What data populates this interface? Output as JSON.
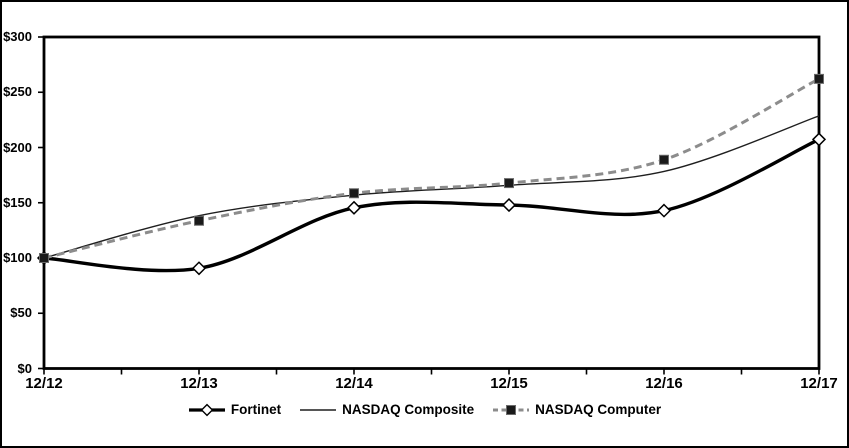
{
  "figure": {
    "background": "#ffffff",
    "outer_border_color": "#000000"
  },
  "chart_data": {
    "type": "line",
    "title": "",
    "xlabel": "",
    "ylabel": "",
    "categories": [
      "12/12",
      "12/13",
      "12/14",
      "12/15",
      "12/16",
      "12/17"
    ],
    "series": [
      {
        "name": "Fortinet",
        "values": [
          100,
          90.7,
          145.4,
          147.9,
          142.9,
          207.3
        ],
        "color": "#000000",
        "line_width": 3.4,
        "dash": "solid",
        "marker": "open-diamond",
        "marker_fill": "#ffffff",
        "marker_stroke": "#000000"
      },
      {
        "name": "NASDAQ Composite",
        "values": [
          100,
          138.3,
          156.9,
          165.8,
          178.3,
          228.6
        ],
        "color": "#1f1f1f",
        "line_width": 1.4,
        "dash": "solid",
        "marker": "none"
      },
      {
        "name": "NASDAQ Computer",
        "values": [
          100,
          133.7,
          158.6,
          167.8,
          188.9,
          262.1
        ],
        "color": "#8c8c8c",
        "line_width": 3,
        "dash": "dashed",
        "marker": "filled-square",
        "marker_fill": "#1a1a1a",
        "marker_stroke": "#6b6b6b"
      }
    ],
    "ylim": [
      0,
      300
    ],
    "y_ticks": [
      300,
      250,
      200,
      150,
      100,
      50,
      0
    ],
    "y_tick_labels": [
      "$300",
      "$250",
      "$200",
      "$150",
      "$100",
      "$50",
      "$0"
    ],
    "grid": false,
    "smoothed_lines": true,
    "legend_position": "bottom",
    "axis_color": "#000000"
  }
}
